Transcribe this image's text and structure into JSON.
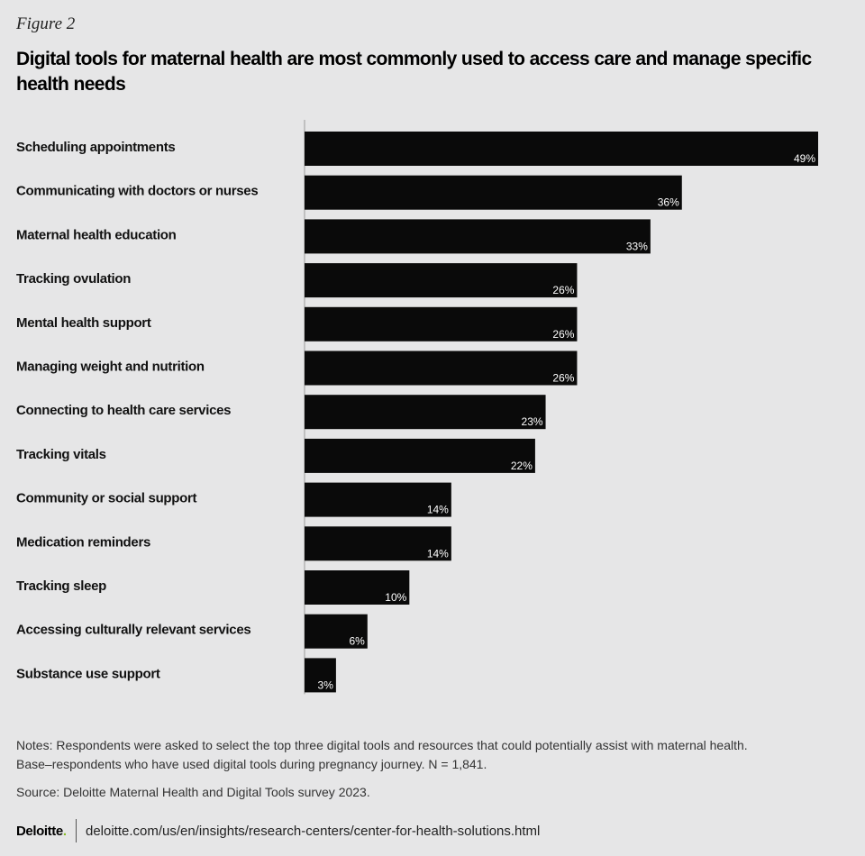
{
  "figure_label": "Figure 2",
  "title": "Digital tools for maternal health are most commonly used to access care and manage specific health needs",
  "notes_line1": "Notes: Respondents were asked to select the top three digital tools and resources that could potentially assist with maternal health.",
  "notes_line2": "Base–respondents who have used digital tools during pregnancy journey. N = 1,841.",
  "source": "Source: Deloitte Maternal Health and Digital Tools survey 2023.",
  "footer": {
    "logo": "Deloitte",
    "logo_dot": ".",
    "url": "deloitte.com/us/en/insights/research-centers/center-for-health-solutions.html"
  },
  "colors": {
    "bar": "#0a0a0a",
    "background": "#e6e6e7",
    "axis": "#9a9a9a",
    "logo_dot": "#86bc25"
  },
  "chart_data": {
    "type": "bar",
    "orientation": "horizontal",
    "categories": [
      "Scheduling appointments",
      "Communicating with doctors or nurses",
      "Maternal health education",
      "Tracking ovulation",
      "Mental health support",
      "Managing weight and nutrition",
      "Connecting to health care services",
      "Tracking vitals",
      "Community or social support",
      "Medication reminders",
      " Tracking sleep",
      "Accessing culturally relevant services",
      "Substance use support"
    ],
    "values": [
      49,
      36,
      33,
      26,
      26,
      26,
      23,
      22,
      14,
      14,
      10,
      6,
      3
    ],
    "value_labels": [
      "49%",
      "36%",
      "33%",
      "26%",
      "26%",
      "26%",
      "23%",
      "22%",
      "14%",
      "14%",
      "10%",
      "6%",
      "3%"
    ],
    "xlim": [
      0,
      49
    ],
    "grid": false,
    "legend": "none"
  }
}
